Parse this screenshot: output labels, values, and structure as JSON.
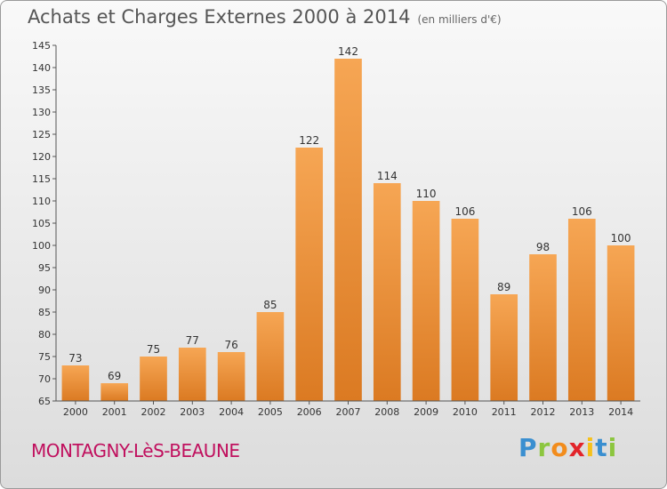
{
  "header": {
    "title": "Achats et Charges Externes 2000 à 2014",
    "subtitle": "(en milliers d'€)"
  },
  "footer": {
    "commune": "MONTAGNY-LèS-BEAUNE",
    "logo_text": "Proxiti"
  },
  "colors": {
    "bar_light": "#f6a654",
    "bar_dark": "#db7a22",
    "commune": "#c0105e"
  },
  "chart_data": {
    "type": "bar",
    "title": "Achats et Charges Externes 2000 à 2014",
    "subtitle": "(en milliers d'€)",
    "xlabel": "",
    "ylabel": "",
    "categories": [
      "2000",
      "2001",
      "2002",
      "2003",
      "2004",
      "2005",
      "2006",
      "2007",
      "2008",
      "2009",
      "2010",
      "2011",
      "2012",
      "2013",
      "2014"
    ],
    "values": [
      73,
      69,
      75,
      77,
      76,
      85,
      122,
      142,
      114,
      110,
      106,
      89,
      98,
      106,
      100
    ],
    "ylim": [
      65,
      145
    ],
    "yticks": [
      65,
      70,
      75,
      80,
      85,
      90,
      95,
      100,
      105,
      110,
      115,
      120,
      125,
      130,
      135,
      140,
      145
    ],
    "grid": false,
    "legend": "none"
  }
}
